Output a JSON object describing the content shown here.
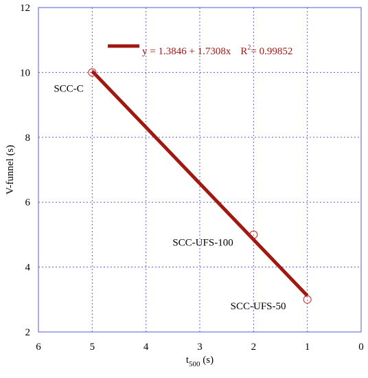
{
  "chart_data": {
    "type": "scatter",
    "xlabel": "t",
    "xlabel_sub": "500",
    "xlabel_unit": " (s)",
    "ylabel": "V-funnel (s)",
    "xlim": [
      6,
      0
    ],
    "ylim": [
      2,
      12
    ],
    "x_ticks": [
      "6",
      "5",
      "4",
      "3",
      "2",
      "1",
      "0"
    ],
    "y_ticks": [
      "2",
      "4",
      "6",
      "8",
      "10",
      "12"
    ],
    "grid": true,
    "points": [
      {
        "label": "SCC-C",
        "x": 5,
        "y": 10
      },
      {
        "label": "SCC-UFS-100",
        "x": 2,
        "y": 5
      },
      {
        "label": "SCC-UFS-50",
        "x": 1,
        "y": 3
      }
    ],
    "fit": {
      "intercept": 1.3846,
      "slope": 1.7308,
      "x_range": [
        1,
        5
      ],
      "legend_text": "y = 1.3846 + 1.7308x",
      "r2_label": "R",
      "r2_sup": "2",
      "r2_value": "= 0.99852",
      "color": "#a01810"
    },
    "marker_color": "#cc2020"
  }
}
